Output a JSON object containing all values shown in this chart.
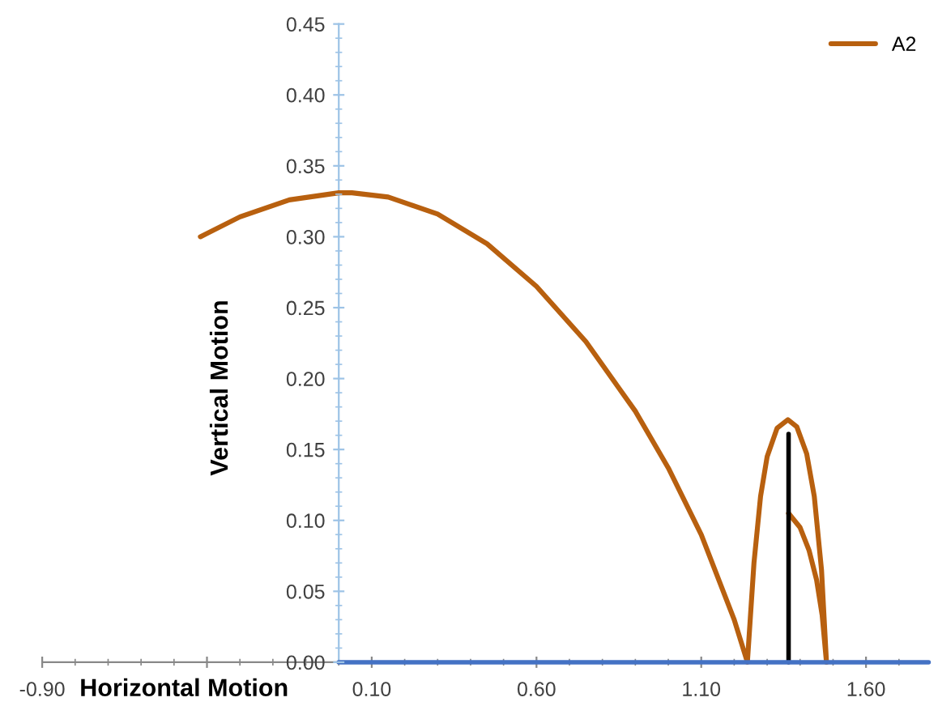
{
  "chart_data": {
    "type": "line",
    "xlabel": "Horizontal Motion",
    "ylabel": "Vertical Motion",
    "xlim": [
      -0.9,
      1.79
    ],
    "ylim": [
      0,
      0.45
    ],
    "xticks": [
      {
        "value": -0.9,
        "label": "-0.90"
      },
      {
        "value": -0.4,
        "label": null
      },
      {
        "value": 0.1,
        "label": "0.10"
      },
      {
        "value": 0.6,
        "label": "0.60"
      },
      {
        "value": 1.1,
        "label": "1.10"
      },
      {
        "value": 1.6,
        "label": "1.60"
      }
    ],
    "yticks": [
      {
        "value": 0,
        "label": "0.00"
      },
      {
        "value": 0.05,
        "label": "0.05"
      },
      {
        "value": 0.1,
        "label": "0.10"
      },
      {
        "value": 0.15,
        "label": "0.15"
      },
      {
        "value": 0.2,
        "label": "0.20"
      },
      {
        "value": 0.25,
        "label": "0.25"
      },
      {
        "value": 0.3,
        "label": "0.30"
      },
      {
        "value": 0.35,
        "label": "0.35"
      },
      {
        "value": 0.4,
        "label": "0.40"
      },
      {
        "value": 0.45,
        "label": "0.45"
      }
    ],
    "grid": false,
    "legend": "top right",
    "marker": "none",
    "line_style": "solid",
    "series": [
      {
        "name": "A2",
        "color": "#b8600f",
        "x": [
          -0.42,
          -0.3,
          -0.15,
          0.0,
          0.04,
          0.15,
          0.3,
          0.45,
          0.6,
          0.75,
          0.9,
          1.0,
          1.1,
          1.2,
          1.24,
          1.26,
          1.28,
          1.3,
          1.33,
          1.363,
          1.39,
          1.42,
          1.443,
          1.465,
          1.48,
          null,
          1.365,
          1.4,
          1.427,
          1.45,
          1.467,
          1.48
        ],
        "values": [
          0.3,
          0.314,
          0.326,
          0.331,
          0.331,
          0.328,
          0.316,
          0.295,
          0.265,
          0.226,
          0.177,
          0.137,
          0.09,
          0.03,
          0.0,
          0.07,
          0.117,
          0.145,
          0.165,
          0.171,
          0.166,
          0.147,
          0.117,
          0.065,
          0.0,
          null,
          0.105,
          0.095,
          0.079,
          0.058,
          0.033,
          0.0
        ]
      },
      {
        "color": "#000000",
        "x": [
          1.365,
          1.365
        ],
        "values": [
          0.0,
          0.161
        ]
      },
      {
        "color": "#4472c4",
        "x": [
          0.0,
          1.79
        ],
        "values": [
          0.0,
          0.0
        ]
      }
    ]
  }
}
